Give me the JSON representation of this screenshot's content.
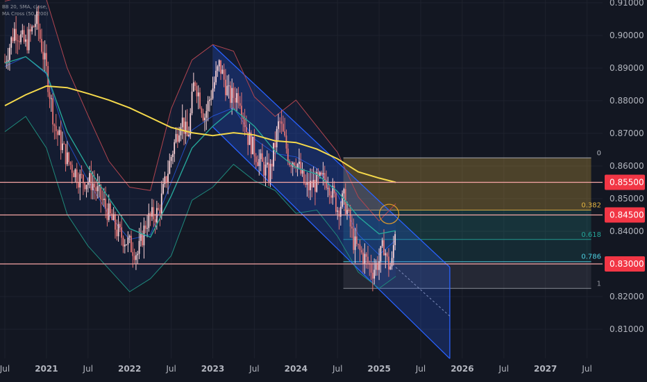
{
  "chart_data": {
    "type": "candlestick",
    "legend": [
      "BB 20, SMA, close,",
      "MA Cross (50, 200)"
    ],
    "y_axis": {
      "min": 0.8,
      "max": 0.912,
      "ticks": [
        0.81,
        0.82,
        0.83,
        0.84,
        0.85,
        0.86,
        0.87,
        0.88,
        0.89,
        0.9,
        0.91
      ],
      "tick_labels": [
        "0.81000",
        "0.82000",
        "0.83000",
        "0.84000",
        "0.85000",
        "0.86000",
        "0.87000",
        "0.88000",
        "0.89000",
        "0.90000",
        "0.91000"
      ]
    },
    "x_axis": {
      "start": 2020.5,
      "end": 2027.55,
      "ticks": [
        2020.5,
        2021.0,
        2021.5,
        2022.0,
        2022.5,
        2023.0,
        2023.5,
        2024.0,
        2024.5,
        2025.0,
        2025.5,
        2026.0,
        2026.5,
        2027.0,
        2027.5
      ],
      "tick_labels": [
        "Jul",
        "2021",
        "Jul",
        "2022",
        "Jul",
        "2023",
        "Jul",
        "2024",
        "Jul",
        "2025",
        "Jul",
        "2026",
        "Jul",
        "2027",
        "Jul"
      ]
    },
    "horizontal_levels": [
      {
        "value": 0.855,
        "label": "0.85500"
      },
      {
        "value": 0.845,
        "label": "0.84500"
      },
      {
        "value": 0.83,
        "label": "0.83000"
      }
    ],
    "channel": {
      "upper": [
        [
          2023.0,
          0.897
        ],
        [
          2025.85,
          0.829
        ]
      ],
      "lower": [
        [
          2023.0,
          0.872
        ],
        [
          2025.85,
          0.801
        ]
      ],
      "mid_dashed": [
        [
          2025.2,
          0.829
        ],
        [
          2025.85,
          0.814
        ]
      ]
    },
    "fibonacci": {
      "x_start": 2024.57,
      "x_end": 2027.55,
      "levels": [
        {
          "ratio": "0",
          "value": 0.8625,
          "color": "#b2b5be"
        },
        {
          "ratio": "0.382",
          "value": 0.8465,
          "color": "#e3b341"
        },
        {
          "ratio": "0.618",
          "value": 0.8375,
          "color": "#26a69a"
        },
        {
          "ratio": "0.786",
          "value": 0.8307,
          "color": "#4dd0e1"
        },
        {
          "ratio": "1",
          "value": 0.8225,
          "color": "#9598a1"
        }
      ]
    },
    "highlight_circle": {
      "x": 2025.12,
      "y": 0.8453
    },
    "ma200": [
      [
        2020.5,
        0.8785
      ],
      [
        2020.75,
        0.8818
      ],
      [
        2021.0,
        0.8845
      ],
      [
        2021.25,
        0.884
      ],
      [
        2021.5,
        0.8822
      ],
      [
        2021.75,
        0.8802
      ],
      [
        2022.0,
        0.8778
      ],
      [
        2022.25,
        0.8748
      ],
      [
        2022.5,
        0.8718
      ],
      [
        2022.75,
        0.8702
      ],
      [
        2023.0,
        0.8693
      ],
      [
        2023.25,
        0.8702
      ],
      [
        2023.5,
        0.8695
      ],
      [
        2023.75,
        0.8677
      ],
      [
        2024.0,
        0.8672
      ],
      [
        2024.25,
        0.8652
      ],
      [
        2024.5,
        0.8622
      ],
      [
        2024.75,
        0.8582
      ],
      [
        2025.0,
        0.8563
      ],
      [
        2025.2,
        0.855
      ]
    ],
    "ma50": [
      [
        2020.5,
        0.8915
      ],
      [
        2020.75,
        0.8935
      ],
      [
        2021.0,
        0.8885
      ],
      [
        2021.25,
        0.8705
      ],
      [
        2021.5,
        0.8595
      ],
      [
        2021.75,
        0.8502
      ],
      [
        2022.0,
        0.8408
      ],
      [
        2022.25,
        0.8382
      ],
      [
        2022.5,
        0.8508
      ],
      [
        2022.75,
        0.8655
      ],
      [
        2023.0,
        0.8722
      ],
      [
        2023.25,
        0.8775
      ],
      [
        2023.5,
        0.8722
      ],
      [
        2023.75,
        0.8645
      ],
      [
        2024.0,
        0.8595
      ],
      [
        2024.25,
        0.8575
      ],
      [
        2024.5,
        0.8522
      ],
      [
        2024.75,
        0.8445
      ],
      [
        2025.0,
        0.8392
      ],
      [
        2025.2,
        0.8402
      ]
    ],
    "bb_upper": [
      [
        2020.5,
        0.9105
      ],
      [
        2020.75,
        0.912
      ],
      [
        2021.0,
        0.911
      ],
      [
        2021.25,
        0.89
      ],
      [
        2021.5,
        0.8755
      ],
      [
        2021.75,
        0.8615
      ],
      [
        2022.0,
        0.8535
      ],
      [
        2022.25,
        0.8525
      ],
      [
        2022.5,
        0.8775
      ],
      [
        2022.75,
        0.8925
      ],
      [
        2023.0,
        0.8972
      ],
      [
        2023.25,
        0.8952
      ],
      [
        2023.5,
        0.8812
      ],
      [
        2023.75,
        0.8752
      ],
      [
        2024.0,
        0.8802
      ],
      [
        2024.25,
        0.8722
      ],
      [
        2024.5,
        0.8642
      ],
      [
        2024.75,
        0.8505
      ],
      [
        2025.0,
        0.8432
      ],
      [
        2025.2,
        0.8485
      ]
    ],
    "bb_lower": [
      [
        2020.5,
        0.8705
      ],
      [
        2020.75,
        0.8752
      ],
      [
        2021.0,
        0.8655
      ],
      [
        2021.25,
        0.8452
      ],
      [
        2021.5,
        0.8355
      ],
      [
        2021.75,
        0.8285
      ],
      [
        2022.0,
        0.8215
      ],
      [
        2022.25,
        0.8255
      ],
      [
        2022.5,
        0.8325
      ],
      [
        2022.75,
        0.8495
      ],
      [
        2023.0,
        0.8535
      ],
      [
        2023.25,
        0.8605
      ],
      [
        2023.5,
        0.8555
      ],
      [
        2023.75,
        0.8525
      ],
      [
        2024.0,
        0.8455
      ],
      [
        2024.25,
        0.8465
      ],
      [
        2024.5,
        0.8385
      ],
      [
        2024.75,
        0.8275
      ],
      [
        2025.0,
        0.8225
      ],
      [
        2025.2,
        0.8262
      ]
    ],
    "bb_basis": [
      [
        2020.5,
        0.8905
      ],
      [
        2020.75,
        0.8935
      ],
      [
        2021.0,
        0.8882
      ],
      [
        2021.25,
        0.8676
      ],
      [
        2021.5,
        0.8555
      ],
      [
        2021.75,
        0.845
      ],
      [
        2022.0,
        0.8375
      ],
      [
        2022.25,
        0.839
      ],
      [
        2022.5,
        0.855
      ],
      [
        2022.75,
        0.871
      ],
      [
        2023.0,
        0.8753
      ],
      [
        2023.25,
        0.8778
      ],
      [
        2023.5,
        0.8683
      ],
      [
        2023.75,
        0.8638
      ],
      [
        2024.0,
        0.8628
      ],
      [
        2024.25,
        0.8593
      ],
      [
        2024.5,
        0.8513
      ],
      [
        2024.75,
        0.839
      ],
      [
        2025.0,
        0.8328
      ],
      [
        2025.2,
        0.8373
      ]
    ],
    "price_path": [
      [
        2020.5,
        0.892
      ],
      [
        2020.62,
        0.902
      ],
      [
        2020.75,
        0.897
      ],
      [
        2020.88,
        0.905
      ],
      [
        2021.0,
        0.889
      ],
      [
        2021.1,
        0.872
      ],
      [
        2021.25,
        0.862
      ],
      [
        2021.4,
        0.856
      ],
      [
        2021.55,
        0.855
      ],
      [
        2021.7,
        0.848
      ],
      [
        2021.85,
        0.84
      ],
      [
        2022.0,
        0.836
      ],
      [
        2022.1,
        0.833
      ],
      [
        2022.2,
        0.843
      ],
      [
        2022.35,
        0.846
      ],
      [
        2022.5,
        0.863
      ],
      [
        2022.62,
        0.875
      ],
      [
        2022.7,
        0.868
      ],
      [
        2022.78,
        0.887
      ],
      [
        2022.9,
        0.875
      ],
      [
        2023.0,
        0.884
      ],
      [
        2023.08,
        0.891
      ],
      [
        2023.2,
        0.881
      ],
      [
        2023.32,
        0.882
      ],
      [
        2023.42,
        0.869
      ],
      [
        2023.55,
        0.862
      ],
      [
        2023.68,
        0.857
      ],
      [
        2023.8,
        0.874
      ],
      [
        2023.92,
        0.862
      ],
      [
        2024.0,
        0.862
      ],
      [
        2024.12,
        0.853
      ],
      [
        2024.25,
        0.855
      ],
      [
        2024.38,
        0.856
      ],
      [
        2024.5,
        0.847
      ],
      [
        2024.58,
        0.85
      ],
      [
        2024.7,
        0.836
      ],
      [
        2024.82,
        0.832
      ],
      [
        2024.92,
        0.828
      ],
      [
        2025.0,
        0.831
      ],
      [
        2025.06,
        0.836
      ],
      [
        2025.1,
        0.83
      ],
      [
        2025.15,
        0.829
      ],
      [
        2025.2,
        0.843
      ]
    ]
  },
  "colors": {
    "background": "#131722",
    "grid": "#1e222d",
    "bull": "#fbd3d7",
    "bear": "#e57373",
    "ma200": "#f5d94b",
    "ma50": "#26a69a",
    "bb_band": "#b04550",
    "bb_basis": "#2962ff",
    "level_line": "#f7a6a6",
    "level_tag": "#f23645",
    "channel_fill": "#2962ff",
    "channel_line": "#2962ff",
    "circle": "#f5a623"
  }
}
